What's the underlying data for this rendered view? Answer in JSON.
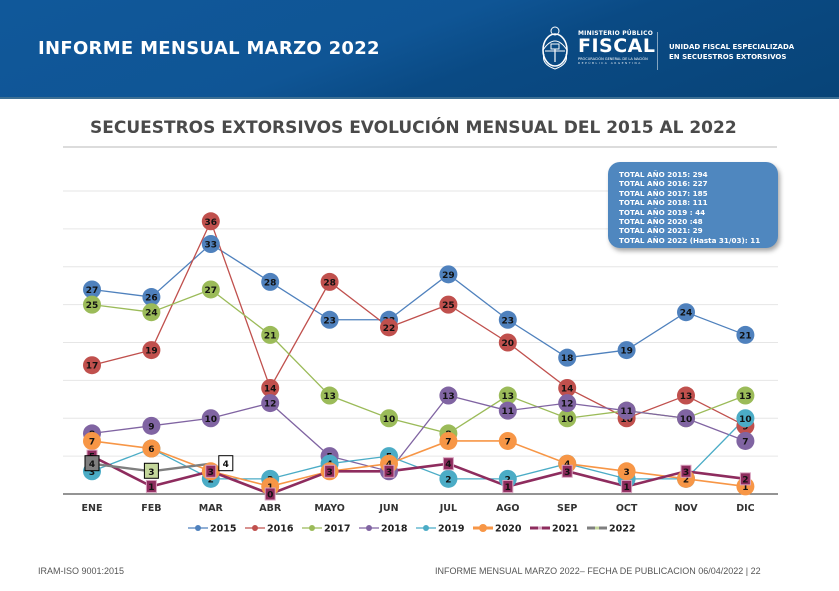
{
  "header": {
    "title": "INFORME MENSUAL MARZO 2022",
    "logo": {
      "small": "MINISTERIO PÚBLICO",
      "big": "FISCAL",
      "line1": "PROCURACIÓN GENERAL DE LA NACIÓN",
      "line2": "REPÚBLICA ARGENTINA"
    },
    "unit_line1": "UNIDAD FISCAL ESPECIALIZADA",
    "unit_line2": "EN SECUESTROS EXTORSIVOS"
  },
  "section_title": "SECUESTROS EXTORSIVOS EVOLUCIÓN MENSUAL DEL 2015 AL 2022",
  "totals": [
    "TOTAL AÑO 2015: 294",
    "TOTAL AÑO 2016: 227",
    "TOTAL AÑO 2017: 185",
    "TOTAL AÑO 2018: 111",
    "TOTAL AÑO 2019 : 44",
    "TOTAL AÑO 2020 :48",
    "TOTAL AÑO 2021: 29",
    "TOTAL AÑO 2022 (Hasta 31/03): 11"
  ],
  "chart_data": {
    "type": "line",
    "title": "SECUESTROS EXTORSIVOS EVOLUCIÓN MENSUAL DEL 2015 AL 2022",
    "xlabel": "",
    "ylabel": "",
    "ylim": [
      0,
      40
    ],
    "ytick_step": 5,
    "y_tick_labels_shown": false,
    "grid": true,
    "legend_position": "bottom",
    "categories": [
      "ENE",
      "FEB",
      "MAR",
      "ABR",
      "MAYO",
      "JUN",
      "JUL",
      "AGO",
      "SEP",
      "OCT",
      "NOV",
      "DIC"
    ],
    "series": [
      {
        "name": "2015",
        "color": "#4f81bd",
        "marker": "circle",
        "values": [
          27,
          26,
          33,
          28,
          23,
          23,
          29,
          23,
          18,
          19,
          24,
          21
        ]
      },
      {
        "name": "2016",
        "color": "#c0504d",
        "marker": "circle",
        "values": [
          17,
          19,
          36,
          14,
          28,
          22,
          25,
          20,
          14,
          10,
          13,
          9
        ]
      },
      {
        "name": "2017",
        "color": "#9bbb59",
        "marker": "circle",
        "values": [
          25,
          24,
          27,
          21,
          13,
          10,
          8,
          13,
          10,
          11,
          10,
          13
        ]
      },
      {
        "name": "2018",
        "color": "#8064a2",
        "marker": "circle",
        "values": [
          8,
          9,
          10,
          12,
          5,
          3,
          13,
          11,
          12,
          11,
          10,
          7
        ]
      },
      {
        "name": "2019",
        "color": "#4bacc6",
        "marker": "circle",
        "values": [
          3,
          6,
          2,
          2,
          4,
          5,
          2,
          2,
          4,
          2,
          2,
          10
        ]
      },
      {
        "name": "2020",
        "color": "#f79646",
        "marker": "circle",
        "values": [
          7,
          6,
          3,
          1,
          3,
          4,
          7,
          7,
          4,
          3,
          2,
          1
        ]
      },
      {
        "name": "2021",
        "color": "#8e2c5e",
        "marker": "square",
        "values": [
          5,
          1,
          3,
          0,
          3,
          3,
          4,
          1,
          3,
          1,
          3,
          2
        ]
      },
      {
        "name": "2022",
        "color": "#7f7f7f",
        "marker": "square-labeled",
        "values": [
          4,
          3,
          4
        ]
      }
    ]
  },
  "footer": {
    "left": "IRAM-ISO 9001:2015",
    "right": "INFORME MENSUAL MARZO 2022– FECHA DE PUBLICACION  06/04/2022 | 22"
  }
}
